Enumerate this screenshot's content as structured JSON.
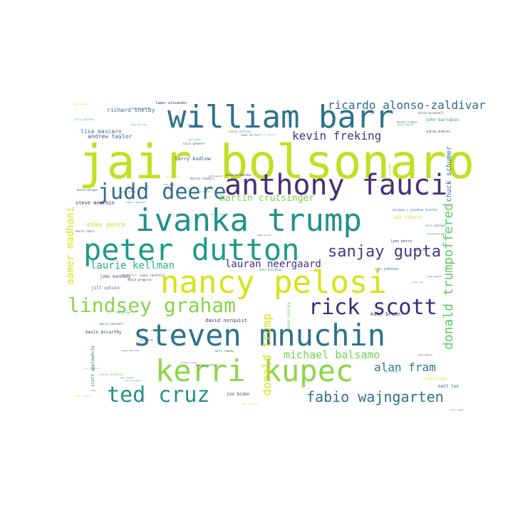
{
  "palette": {
    "dark_purple": "#472d7b",
    "indigo": "#3b528b",
    "blue_teal": "#2c728e",
    "teal": "#21918c",
    "green_teal": "#28ae80",
    "green": "#5ec962",
    "lime": "#addc30",
    "yellow": "#d8e219"
  },
  "words": [
    {
      "text": "jair bolsonaro",
      "color": "#c2df23"
    },
    {
      "text": "william barr",
      "color": "#2c728e"
    },
    {
      "text": "anthony fauci",
      "color": "#472d7b"
    },
    {
      "text": "judd deere",
      "color": "#2f6c8e"
    },
    {
      "text": "ivanka trump",
      "color": "#21918c"
    },
    {
      "text": "peter dutton",
      "color": "#1f9a8a"
    },
    {
      "text": "nancy pelosi",
      "color": "#d8e219"
    },
    {
      "text": "steven mnuchin",
      "color": "#2c728e"
    },
    {
      "text": "kerri kupec",
      "color": "#8bd646"
    },
    {
      "text": "ted cruz",
      "color": "#21918c"
    },
    {
      "text": "lindsey graham",
      "color": "#86d549"
    },
    {
      "text": "rick scott",
      "color": "#3b2a7a"
    },
    {
      "text": "sanjay gupta",
      "color": "#443983"
    },
    {
      "text": "fabio wajngarten",
      "color": "#2c728e"
    },
    {
      "text": "ricardo alonso-zaldivar",
      "color": "#31688e"
    },
    {
      "text": "kevin freking",
      "color": "#46327e"
    },
    {
      "text": "donald trumpoffered",
      "color": "#5ec962"
    },
    {
      "text": "donald trump",
      "color": "#d8e219"
    },
    {
      "text": "michael balsamo",
      "color": "#75d054"
    },
    {
      "text": "alan fram",
      "color": "#2c728e"
    },
    {
      "text": "aamer madhani",
      "color": "#d8e219"
    },
    {
      "text": "laurie kellman",
      "color": "#28ae80"
    },
    {
      "text": "lauran neergaard",
      "color": "#472d7b"
    },
    {
      "text": "martin crutsinger",
      "color": "#7ad151"
    },
    {
      "text": "chuck schumer",
      "color": "#2c728e"
    },
    {
      "text": "mike pence",
      "color": "#c8e020"
    },
    {
      "text": "richard shelby",
      "color": "#2c728e"
    },
    {
      "text": "lisa mascaro",
      "color": "#2c728e"
    },
    {
      "text": "andrew taylor",
      "color": "#3b528b"
    },
    {
      "text": "larry kudlow",
      "color": "#3b528b"
    },
    {
      "text": "steve mnuchin",
      "color": "#472d7b"
    },
    {
      "text": "john kennedy",
      "color": "#3b528b"
    },
    {
      "text": "jill colvin",
      "color": "#3b528b"
    },
    {
      "text": "kevin mccarthy",
      "color": "#472d7b"
    },
    {
      "text": "david norquist",
      "color": "#472d7b"
    },
    {
      "text": "j scott applewhite",
      "color": "#2c728e"
    },
    {
      "text": "joe biden",
      "color": "#3b528b"
    },
    {
      "text": "mike braun",
      "color": "#472d7b"
    },
    {
      "text": "matt lee",
      "color": "#2c728e"
    },
    {
      "text": "richard neal",
      "color": "#d8e219"
    },
    {
      "text": "sean conley",
      "color": "#5ec962"
    },
    {
      "text": "lynn berry",
      "color": "#472d7b"
    },
    {
      "text": "ron johnson",
      "color": "#2c728e"
    },
    {
      "text": "pat roberts",
      "color": "#d8e219"
    },
    {
      "text": "eric wieland",
      "color": "#2c728e"
    },
    {
      "text": "john barrasso",
      "color": "#21918c"
    },
    {
      "text": "kevin cramer",
      "color": "#2c728e"
    },
    {
      "text": "mitch mcconnell",
      "color": "#3b528b"
    },
    {
      "text": "andrew duehren",
      "color": "#472d7b"
    },
    {
      "text": "deb fischer",
      "color": "#addc30"
    },
    {
      "text": "lamar alexander",
      "color": "#472d7b"
    },
    {
      "text": "kate davidson",
      "color": "#21918c"
    },
    {
      "text": "maria cantwell",
      "color": "#2c728e"
    },
    {
      "text": "mitt romney",
      "color": "#2c728e"
    },
    {
      "text": "david gregorio",
      "color": "#472d7b"
    },
    {
      "text": "james lankford",
      "color": "#3b528b"
    },
    {
      "text": "ted olson",
      "color": "#28ae80"
    },
    {
      "text": "jaime harrison",
      "color": "#472d7b"
    },
    {
      "text": "louie gohmert",
      "color": "#2c728e"
    },
    {
      "text": "natalie andrews",
      "color": "#472d7b"
    },
    {
      "text": "bernie sanders",
      "color": "#3b528b"
    },
    {
      "text": "mccdoep j jonathan huzzten",
      "color": "#2c728e"
    },
    {
      "text": "mario rubio",
      "color": "#3b528b"
    },
    {
      "text": "tammy duckworth",
      "color": "#472d7b"
    },
    {
      "text": "cory gardner",
      "color": "#5ec962"
    },
    {
      "text": "henry mcmaster",
      "color": "#75d054"
    },
    {
      "text": "jake sullivan",
      "color": "#21918c"
    },
    {
      "text": "david wingerd",
      "color": "#28ae80"
    },
    {
      "text": "john cornyn",
      "color": "#3b528b"
    },
    {
      "text": "david morgan",
      "color": "#3b528b"
    },
    {
      "text": "katie porter",
      "color": "#3b528b"
    },
    {
      "text": "richard roben",
      "color": "#3b528b"
    },
    {
      "text": "john dingell",
      "color": "#addc30"
    },
    {
      "text": "bernadette gaudr",
      "color": "#2c728e"
    },
    {
      "text": "zeke miller",
      "color": "#2c728e"
    },
    {
      "text": "brian kemp",
      "color": "#472d7b"
    },
    {
      "text": "mike lee",
      "color": "#21918c"
    },
    {
      "text": "rand paul",
      "color": "#3b528b"
    },
    {
      "text": "hakeem jeffries",
      "color": "#5ec962"
    },
    {
      "text": "adam schiff",
      "color": "#3b528b"
    },
    {
      "text": "josh hawley",
      "color": "#472d7b"
    },
    {
      "text": "tom cotton",
      "color": "#21918c"
    },
    {
      "text": "chris coons",
      "color": "#addc30"
    },
    {
      "text": "susan collins",
      "color": "#21918c"
    },
    {
      "text": "mark warner",
      "color": "#3b528b"
    },
    {
      "text": "joni ernst",
      "color": "#472d7b"
    },
    {
      "text": "kevin hassett",
      "color": "#5ec962"
    },
    {
      "text": "elaine chao",
      "color": "#28ae80"
    },
    {
      "text": "alex azar",
      "color": "#21918c"
    },
    {
      "text": "mark meadows",
      "color": "#d8e219"
    },
    {
      "text": "robert redfield",
      "color": "#3b528b"
    },
    {
      "text": "deborah birx",
      "color": "#472d7b"
    },
    {
      "text": "jerome powell",
      "color": "#2c728e"
    },
    {
      "text": "andrew cuomo",
      "color": "#addc30"
    },
    {
      "text": "gavin newsom",
      "color": "#21918c"
    },
    {
      "text": "ron desantis",
      "color": "#5ec962"
    },
    {
      "text": "greg abbott",
      "color": "#3b528b"
    },
    {
      "text": "mike dewine",
      "color": "#472d7b"
    },
    {
      "text": "larry hogan",
      "color": "#2c728e"
    },
    {
      "text": "phil murphy",
      "color": "#28ae80"
    }
  ]
}
